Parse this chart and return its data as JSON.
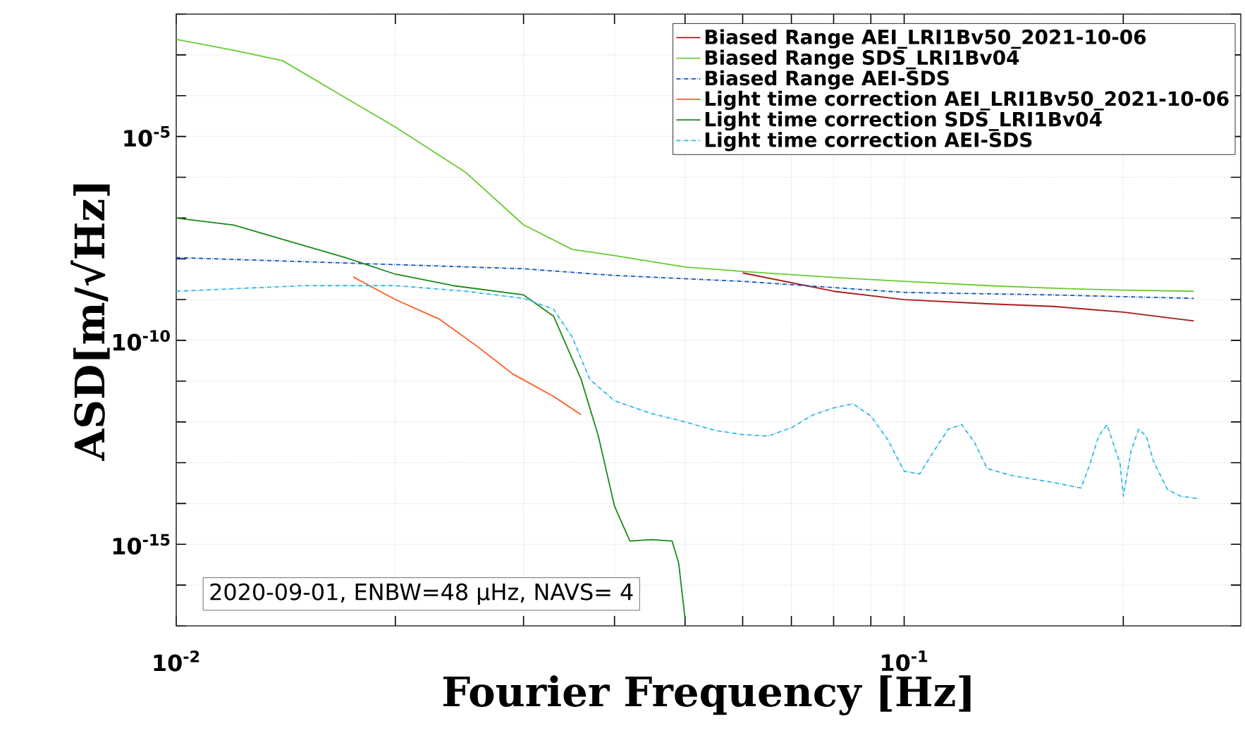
{
  "chart_data": {
    "type": "line",
    "xlabel": "Fourier Frequency [Hz]",
    "ylabel": "ASD[m/√Hz]",
    "log": "xy",
    "grid": true,
    "legend": "top right",
    "marker": "none",
    "xlim": [
      0.01,
      0.29
    ],
    "ylim": [
      1e-17,
      0.01
    ],
    "xticks": [
      {
        "value": 0.01,
        "label": "10$^{-2}$"
      },
      {
        "value": 0.02,
        "label": null
      },
      {
        "value": 0.03,
        "label": null
      },
      {
        "value": 0.04,
        "label": null
      },
      {
        "value": 0.05,
        "label": null
      },
      {
        "value": 0.06,
        "label": null
      },
      {
        "value": 0.07,
        "label": null
      },
      {
        "value": 0.08,
        "label": null
      },
      {
        "value": 0.09,
        "label": null
      },
      {
        "value": 0.1,
        "label": "10$^{-1}$"
      },
      {
        "value": 0.2,
        "label": null
      }
    ],
    "yticks": [
      {
        "value": 1e-17,
        "label": null
      },
      {
        "value": 1e-16,
        "label": null
      },
      {
        "value": 1e-15,
        "label": "10$^{-15}$"
      },
      {
        "value": 1e-14,
        "label": null
      },
      {
        "value": 1e-13,
        "label": null
      },
      {
        "value": 1e-12,
        "label": null
      },
      {
        "value": 1e-11,
        "label": null
      },
      {
        "value": 1e-10,
        "label": "10$^{-10}$"
      },
      {
        "value": 1e-09,
        "label": null
      },
      {
        "value": 1e-08,
        "label": null
      },
      {
        "value": 1e-07,
        "label": null
      },
      {
        "value": 1e-06,
        "label": null
      },
      {
        "value": 1e-05,
        "label": "10$^{-5}$"
      },
      {
        "value": 0.0001,
        "label": null
      },
      {
        "value": 0.001,
        "label": null
      },
      {
        "value": 0.01,
        "label": null
      }
    ],
    "annotations": [
      "2020-09-01, ENBW=48 µHz, NAVS= 4"
    ],
    "series": [
      {
        "name": "Biased Range AEI_LRI1Bv50_2021-10-06",
        "color": "#aa1a1a",
        "line_style": "solid",
        "x": [
          0.06,
          0.08,
          0.1,
          0.13,
          0.16,
          0.2,
          0.25
        ],
        "values": [
          4.5e-09,
          1.6e-09,
          1e-09,
          7.9e-10,
          6.8e-10,
          4.9e-10,
          3e-10
        ]
      },
      {
        "name": "Biased Range SDS_LRI1Bv04",
        "color": "#66cc33",
        "line_style": "solid",
        "x": [
          0.01,
          0.012,
          0.014,
          0.017,
          0.02,
          0.025,
          0.03,
          0.035,
          0.04,
          0.05,
          0.06,
          0.08,
          0.1,
          0.13,
          0.16,
          0.2,
          0.25
        ],
        "values": [
          0.0024,
          0.0013,
          0.00072,
          9.3e-05,
          1.7e-05,
          1.3e-06,
          6.8e-08,
          1.7e-08,
          1.2e-08,
          6.3e-09,
          4.9e-09,
          3.5e-09,
          2.8e-09,
          2.2e-09,
          1.9e-09,
          1.7e-09,
          1.6e-09
        ]
      },
      {
        "name": "Biased Range AEI-SDS",
        "color": "#1055b8",
        "line_style": "dashed",
        "x": [
          0.01,
          0.02,
          0.03,
          0.04,
          0.06,
          0.1,
          0.16,
          0.25
        ],
        "values": [
          1.07e-08,
          7.2e-09,
          5.7e-09,
          3.9e-09,
          2.8e-09,
          1.5e-09,
          1.3e-09,
          1.07e-09
        ]
      },
      {
        "name": "Light time correction AEI_LRI1Bv50_2021-10-06",
        "color": "#ff5a22",
        "line_style": "solid",
        "x": [
          0.0175,
          0.02,
          0.023,
          0.026,
          0.029,
          0.033,
          0.036
        ],
        "values": [
          3.6e-09,
          1e-09,
          3.3e-10,
          6.8e-11,
          1.5e-11,
          4.2e-12,
          1.5e-12
        ]
      },
      {
        "name": "Light time correction SDS_LRI1Bv04",
        "color": "#1a8a1a",
        "line_style": "solid",
        "x": [
          0.01,
          0.012,
          0.014,
          0.017,
          0.02,
          0.024,
          0.03,
          0.033,
          0.036,
          0.038,
          0.04,
          0.042,
          0.045,
          0.048,
          0.049,
          0.05
        ],
        "values": [
          1e-07,
          6.7e-08,
          3e-08,
          1.1e-08,
          4.2e-09,
          2.2e-09,
          1.3e-09,
          3.9e-10,
          1.1e-11,
          4.6e-13,
          8.6e-15,
          1.2e-15,
          1.3e-15,
          1.2e-15,
          3.5e-16,
          1.5e-17
        ]
      },
      {
        "name": "Light time correction AEI-SDS",
        "color": "#33b5e5",
        "line_style": "dashed",
        "x": [
          0.01,
          0.015,
          0.02,
          0.025,
          0.03,
          0.033,
          0.035,
          0.037,
          0.04,
          0.045,
          0.05,
          0.055,
          0.06,
          0.065,
          0.07,
          0.075,
          0.08,
          0.085,
          0.09,
          0.095,
          0.1,
          0.105,
          0.11,
          0.115,
          0.12,
          0.125,
          0.13,
          0.14,
          0.16,
          0.175,
          0.18,
          0.185,
          0.19,
          0.198,
          0.2,
          0.205,
          0.21,
          0.215,
          0.22,
          0.23,
          0.24,
          0.255
        ],
        "values": [
          1.6e-09,
          2.2e-09,
          2.2e-09,
          1.6e-09,
          1.07e-09,
          5.8e-10,
          1.2e-10,
          1.1e-11,
          3.3e-12,
          1.6e-12,
          1e-12,
          6.2e-13,
          4.9e-13,
          4.5e-13,
          7.2e-13,
          1.5e-12,
          2.2e-12,
          2.8e-12,
          1.4e-12,
          3.6e-13,
          6.2e-14,
          5.3e-14,
          2e-13,
          6.7e-13,
          8.6e-13,
          3.1e-13,
          7.2e-14,
          4.9e-14,
          3.3e-14,
          2.4e-14,
          9.3e-14,
          4.5e-13,
          8.6e-13,
          9.3e-14,
          1.5e-14,
          2e-13,
          6.7e-13,
          4.5e-13,
          1.1e-13,
          2.2e-14,
          1.5e-14,
          1.3e-14
        ]
      }
    ]
  }
}
